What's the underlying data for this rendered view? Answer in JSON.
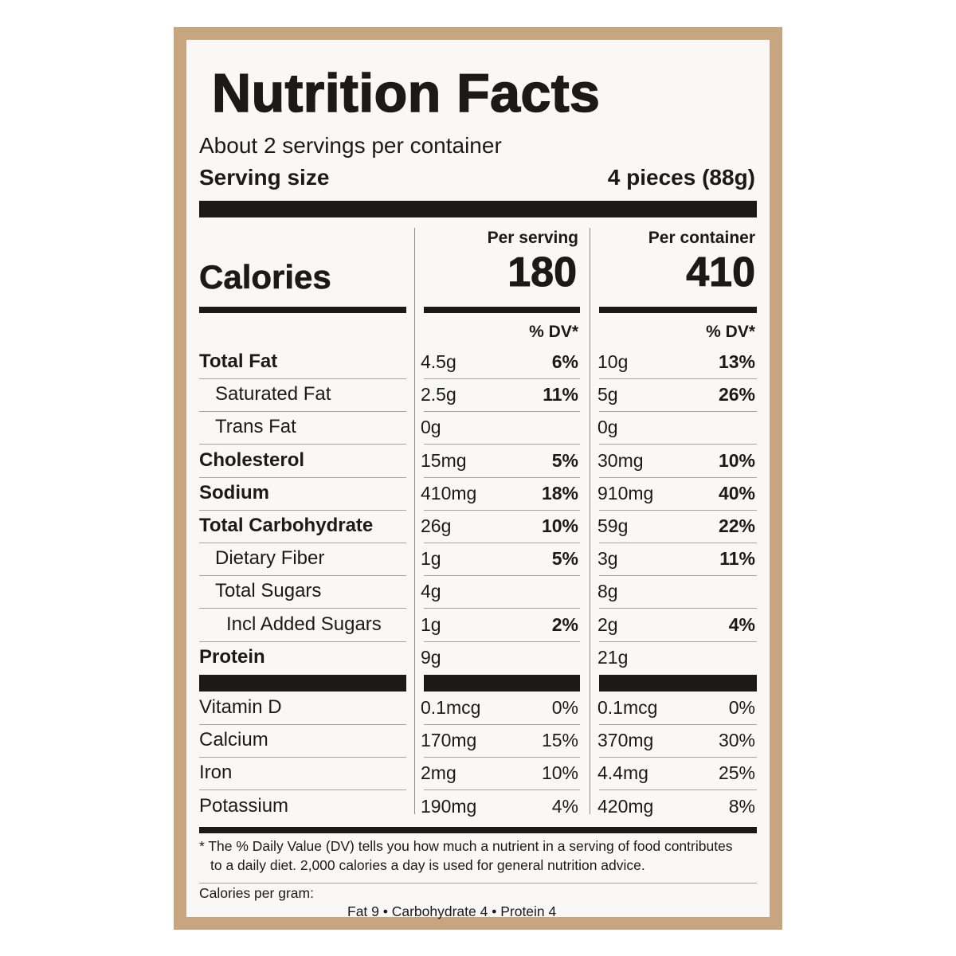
{
  "title": "Nutrition Facts",
  "servings_per_container": "About 2 servings per container",
  "serving_size": {
    "label": "Serving size",
    "value": "4 pieces (88g)"
  },
  "calories": {
    "label": "Calories",
    "per_serving_header": "Per serving",
    "per_container_header": "Per container",
    "per_serving": "180",
    "per_container": "410"
  },
  "dv_header": "% DV*",
  "nutrients": [
    {
      "name": "Total Fat",
      "bold": true,
      "indent": 0,
      "serv_amount": "4.5g",
      "serv_dv": "6%",
      "cont_amount": "10g",
      "cont_dv": "13%"
    },
    {
      "name": "Saturated Fat",
      "bold": false,
      "indent": 1,
      "serv_amount": "2.5g",
      "serv_dv": "11%",
      "cont_amount": "5g",
      "cont_dv": "26%"
    },
    {
      "name": "Trans Fat",
      "bold": false,
      "indent": 1,
      "serv_amount": "0g",
      "serv_dv": "",
      "cont_amount": "0g",
      "cont_dv": ""
    },
    {
      "name": "Cholesterol",
      "bold": true,
      "indent": 0,
      "serv_amount": "15mg",
      "serv_dv": "5%",
      "cont_amount": "30mg",
      "cont_dv": "10%"
    },
    {
      "name": "Sodium",
      "bold": true,
      "indent": 0,
      "serv_amount": "410mg",
      "serv_dv": "18%",
      "cont_amount": "910mg",
      "cont_dv": "40%"
    },
    {
      "name": "Total Carbohydrate",
      "bold": true,
      "indent": 0,
      "serv_amount": "26g",
      "serv_dv": "10%",
      "cont_amount": "59g",
      "cont_dv": "22%"
    },
    {
      "name": "Dietary Fiber",
      "bold": false,
      "indent": 1,
      "serv_amount": "1g",
      "serv_dv": "5%",
      "cont_amount": "3g",
      "cont_dv": "11%"
    },
    {
      "name": "Total Sugars",
      "bold": false,
      "indent": 1,
      "serv_amount": "4g",
      "serv_dv": "",
      "cont_amount": "8g",
      "cont_dv": ""
    },
    {
      "name": "Incl Added Sugars",
      "bold": false,
      "indent": 2,
      "serv_amount": "1g",
      "serv_dv": "2%",
      "cont_amount": "2g",
      "cont_dv": "4%"
    },
    {
      "name": "Protein",
      "bold": true,
      "indent": 0,
      "serv_amount": "9g",
      "serv_dv": "",
      "cont_amount": "21g",
      "cont_dv": ""
    }
  ],
  "vitamins": [
    {
      "name": "Vitamin D",
      "serv_amount": "0.1mcg",
      "serv_dv": "0%",
      "cont_amount": "0.1mcg",
      "cont_dv": "0%"
    },
    {
      "name": "Calcium",
      "serv_amount": "170mg",
      "serv_dv": "15%",
      "cont_amount": "370mg",
      "cont_dv": "30%"
    },
    {
      "name": "Iron",
      "serv_amount": "2mg",
      "serv_dv": "10%",
      "cont_amount": "4.4mg",
      "cont_dv": "25%"
    },
    {
      "name": "Potassium",
      "serv_amount": "190mg",
      "serv_dv": "4%",
      "cont_amount": "420mg",
      "cont_dv": "8%"
    }
  ],
  "footnote": {
    "line1": "* The % Daily Value (DV) tells you how much a nutrient in a serving of food contributes",
    "line2": "to a daily diet. 2,000 calories a day is used for general nutrition advice."
  },
  "calories_per_gram": {
    "label": "Calories per gram:",
    "line": "Fat 9 • Carbohydrate 4 • Protein 4"
  },
  "colors": {
    "border": "#c7a57f",
    "panel": "#faf8f6",
    "ink": "#1c1a17"
  }
}
